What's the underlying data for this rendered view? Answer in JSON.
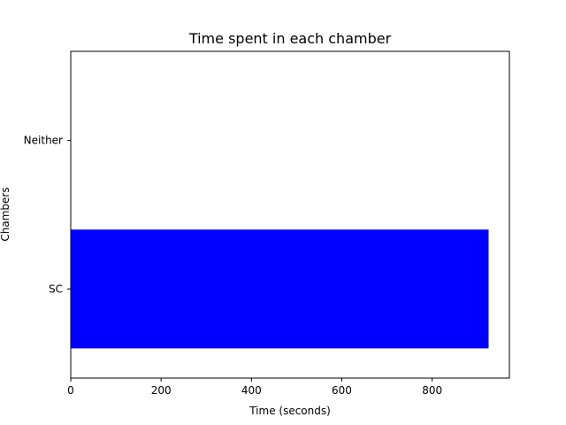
{
  "chart_data": {
    "type": "bar",
    "orientation": "horizontal",
    "title": "Time spent in each chamber",
    "xlabel": "Time (seconds)",
    "ylabel": "Chambers",
    "categories": [
      "SC",
      "Neither"
    ],
    "values": [
      925,
      0
    ],
    "xlim": [
      0,
      971
    ],
    "xticks": [
      0,
      200,
      400,
      600,
      800
    ],
    "bar_color": "#0000ff",
    "grid": false,
    "legend": "none"
  }
}
